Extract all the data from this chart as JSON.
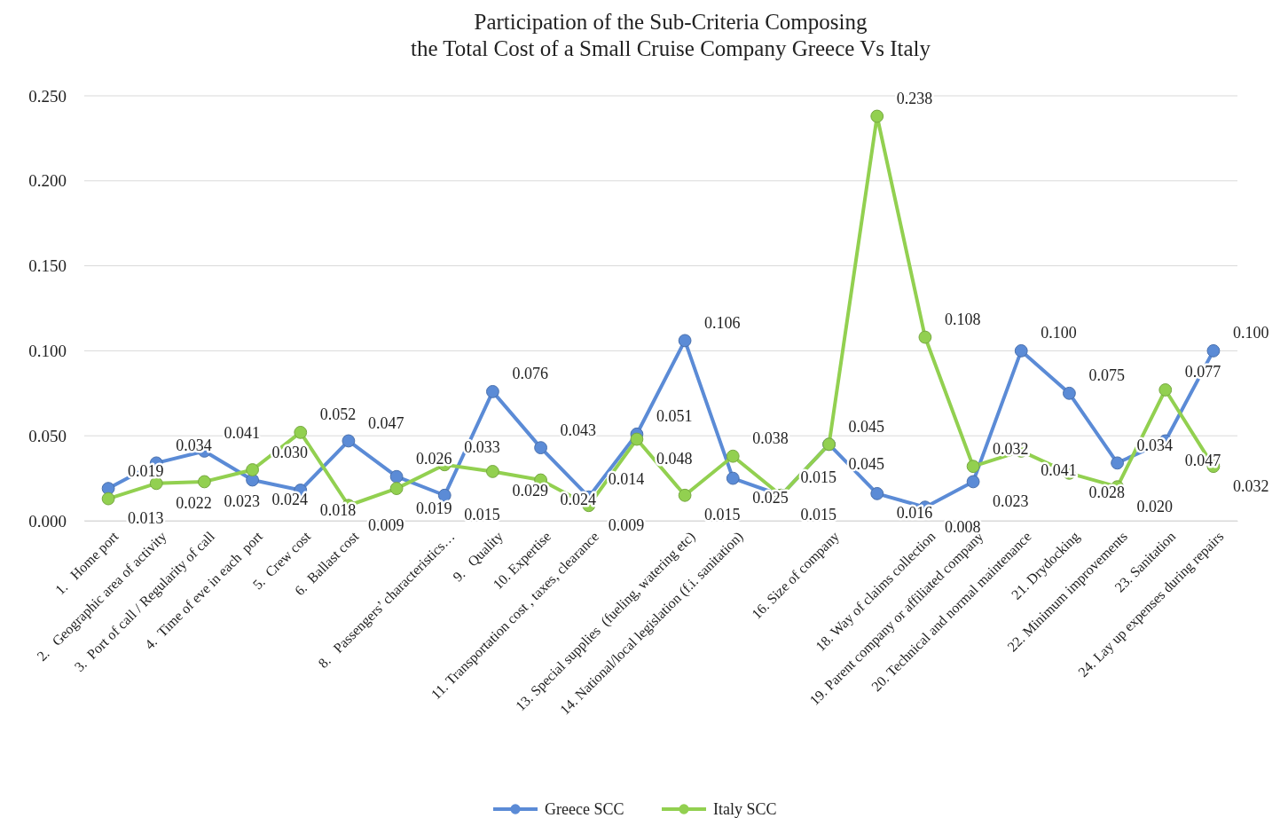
{
  "chart_data": {
    "type": "line",
    "title": "Participation of the Sub-Criteria Composing\nthe Total Cost of a Small Cruise Company Greece Vs Italy",
    "categories": [
      "1.   Home port",
      "2.   Geographic area of activity",
      "3.  Port of call / Regularity of call",
      "4.  Time of eve in each  port",
      "5.  Crew cost",
      "6.  Ballast cost",
      null,
      "8.   Passengers’ characteristics…",
      "9.   Quality",
      "10. Expertise",
      "11. Transportation cost , taxes, clearance",
      null,
      "13. Special supplies  (fueling, watering etc)",
      "14. National/local legislation (f.i. sanitation)",
      null,
      "16. Size of company",
      null,
      "18. Way of claims collection",
      "19. Parent company or affiliated company",
      "20. Technical and normal maintenance",
      "21. Drydocking",
      "22. Minimum improvements",
      "23. Sanitation",
      "24. Lay up expenses during repairs"
    ],
    "series": [
      {
        "name": "Greece SCC",
        "color": "#5b8bd6",
        "values": [
          0.019,
          0.034,
          0.041,
          0.024,
          0.018,
          0.047,
          0.026,
          0.015,
          0.076,
          0.043,
          0.014,
          0.051,
          0.106,
          0.025,
          0.015,
          0.045,
          0.016,
          0.008,
          0.023,
          0.1,
          0.075,
          0.034,
          0.047,
          0.1
        ],
        "value_labels": [
          "0.019",
          "0.034",
          "0.041",
          "0.024",
          "0.018",
          "0.047",
          "0.026",
          "0.015",
          "0.076",
          "0.043",
          "0.014",
          "0.051",
          "0.106",
          "0.025",
          "0.015",
          "0.045",
          "0.016",
          "0.008",
          "0.023",
          "0.100",
          "0.075",
          "0.034",
          "0.047",
          "0.100"
        ]
      },
      {
        "name": "Italy SCC",
        "color": "#92d050",
        "values": [
          0.013,
          0.022,
          0.023,
          0.03,
          0.052,
          0.009,
          0.019,
          0.033,
          0.029,
          0.024,
          0.009,
          0.048,
          0.015,
          0.038,
          0.015,
          0.045,
          0.238,
          0.108,
          0.032,
          0.041,
          0.028,
          0.02,
          0.077,
          0.032
        ],
        "value_labels": [
          "0.013",
          "0.022",
          "0.023",
          "0.030",
          "0.052",
          "0.009",
          "0.019",
          "0.033",
          "0.029",
          "0.024",
          "0.009",
          "0.048",
          "0.015",
          "0.038",
          "0.015",
          "0.045",
          "0.238",
          "0.108",
          "0.032",
          "0.041",
          "0.028",
          "0.020",
          "0.077",
          "0.032"
        ]
      }
    ],
    "ylim": [
      0,
      0.25
    ],
    "yticks": [
      {
        "value": 0,
        "label": "0.000"
      },
      {
        "value": 0.05,
        "label": "0.050"
      },
      {
        "value": 0.1,
        "label": "0.100"
      },
      {
        "value": 0.15,
        "label": "0.150"
      },
      {
        "value": 0.2,
        "label": "0.200"
      },
      {
        "value": 0.25,
        "label": "0.250"
      }
    ],
    "grid": "y",
    "legend": "bottom",
    "marker": "circle",
    "line_style": "solid"
  }
}
